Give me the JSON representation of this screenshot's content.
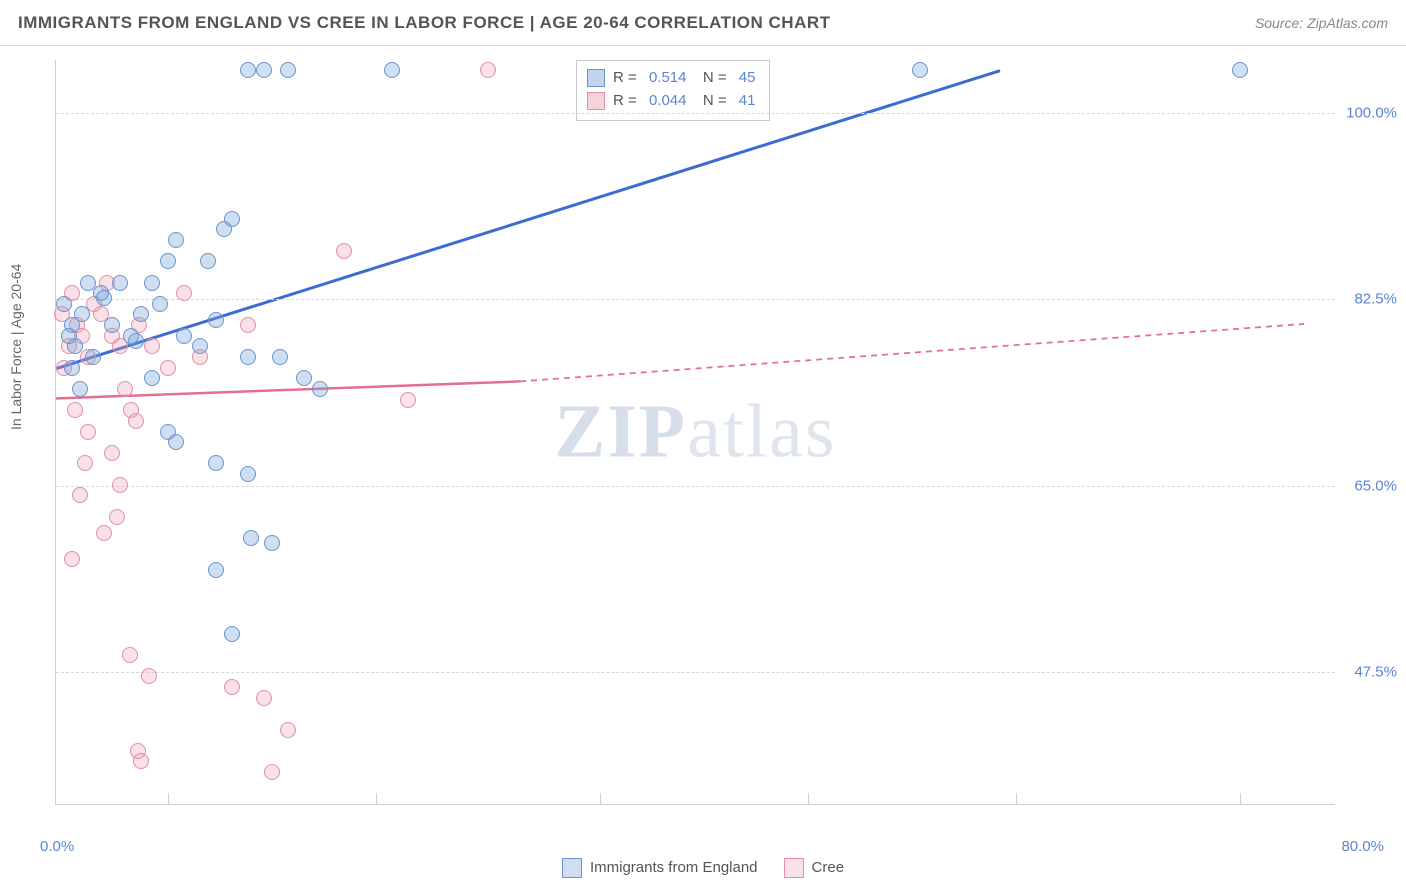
{
  "header": {
    "title": "IMMIGRANTS FROM ENGLAND VS CREE IN LABOR FORCE | AGE 20-64 CORRELATION CHART",
    "source": "Source: ZipAtlas.com"
  },
  "y_axis_label": "In Labor Force | Age 20-64",
  "axes": {
    "xmin": 0,
    "xmax": 80,
    "ymin": 35,
    "ymax": 105,
    "y_ticks": [
      {
        "v": 100.0,
        "label": "100.0%"
      },
      {
        "v": 82.5,
        "label": "82.5%"
      },
      {
        "v": 65.0,
        "label": "65.0%"
      },
      {
        "v": 47.5,
        "label": "47.5%"
      }
    ],
    "x_left_label": "0.0%",
    "x_right_label": "80.0%",
    "x_tick_positions": [
      7,
      20,
      34,
      47,
      60,
      74
    ]
  },
  "grid_color": "#d8d8d8",
  "stats": {
    "blue": {
      "R": "0.514",
      "N": "45"
    },
    "pink": {
      "R": "0.044",
      "N": "41"
    }
  },
  "series": {
    "blue": {
      "label": "Immigrants from England",
      "fill": "rgba(120,160,215,0.35)",
      "stroke": "#6a93d0",
      "line_color": "#3c6cd0",
      "line_width": 3,
      "regression": {
        "solid_from": [
          0,
          76
        ],
        "solid_to": [
          59,
          104
        ],
        "dash_to": null
      },
      "points": [
        [
          1,
          80
        ],
        [
          0.5,
          82
        ],
        [
          1.2,
          78
        ],
        [
          1.6,
          81
        ],
        [
          2,
          84
        ],
        [
          0.8,
          79
        ],
        [
          2.3,
          77
        ],
        [
          2.8,
          83
        ],
        [
          3,
          82.5
        ],
        [
          3.5,
          80
        ],
        [
          4,
          84
        ],
        [
          1,
          76
        ],
        [
          1.5,
          74
        ],
        [
          4.7,
          79
        ],
        [
          5,
          78.5
        ],
        [
          5.3,
          81
        ],
        [
          6,
          84
        ],
        [
          6.5,
          82
        ],
        [
          7,
          86
        ],
        [
          7.5,
          88
        ],
        [
          8,
          79
        ],
        [
          9,
          78
        ],
        [
          9.5,
          86
        ],
        [
          10,
          80.5
        ],
        [
          10.5,
          89
        ],
        [
          11,
          90
        ],
        [
          12,
          77
        ],
        [
          14,
          77
        ],
        [
          15.5,
          75
        ],
        [
          16.5,
          74
        ],
        [
          7,
          70
        ],
        [
          7.5,
          69
        ],
        [
          10,
          67
        ],
        [
          12,
          66
        ],
        [
          10,
          57
        ],
        [
          12.2,
          60
        ],
        [
          13.5,
          59.5
        ],
        [
          11,
          51
        ],
        [
          6,
          75
        ],
        [
          13,
          104
        ],
        [
          14.5,
          104
        ],
        [
          21,
          104
        ],
        [
          54,
          104
        ],
        [
          74,
          104
        ],
        [
          12,
          104
        ]
      ]
    },
    "pink": {
      "label": "Cree",
      "fill": "rgba(235,155,175,0.30)",
      "stroke": "#e28fa5",
      "line_color": "#e36f8f",
      "line_width": 2.5,
      "regression": {
        "solid_from": [
          0,
          73.2
        ],
        "solid_to": [
          29,
          74.8
        ],
        "dash_to": [
          78,
          80.2
        ]
      },
      "points": [
        [
          0.4,
          81
        ],
        [
          0.8,
          78
        ],
        [
          1.0,
          83
        ],
        [
          1.3,
          80
        ],
        [
          1.6,
          79
        ],
        [
          2.0,
          77
        ],
        [
          0.5,
          76
        ],
        [
          2.4,
          82
        ],
        [
          2.8,
          81
        ],
        [
          3.2,
          84
        ],
        [
          3.5,
          79
        ],
        [
          4,
          78
        ],
        [
          4.3,
          74
        ],
        [
          5.2,
          80
        ],
        [
          6,
          78
        ],
        [
          1.2,
          72
        ],
        [
          2,
          70
        ],
        [
          4.7,
          72
        ],
        [
          3.5,
          68
        ],
        [
          1.8,
          67
        ],
        [
          4,
          65
        ],
        [
          5,
          71
        ],
        [
          18,
          87
        ],
        [
          12,
          80
        ],
        [
          22,
          73
        ],
        [
          27,
          104
        ],
        [
          1.5,
          64
        ],
        [
          3.8,
          62
        ],
        [
          3,
          60.5
        ],
        [
          1,
          58
        ],
        [
          4.6,
          49
        ],
        [
          5.8,
          47
        ],
        [
          11,
          46
        ],
        [
          13,
          45
        ],
        [
          14.5,
          42
        ],
        [
          5.1,
          40
        ],
        [
          5.3,
          39
        ],
        [
          13.5,
          38
        ],
        [
          8,
          83
        ],
        [
          7,
          76
        ],
        [
          9,
          77
        ]
      ]
    }
  },
  "bottom_legend": [
    {
      "color_key": "blue",
      "label": "Immigrants from England"
    },
    {
      "color_key": "pink",
      "label": "Cree"
    }
  ],
  "watermark": {
    "bold": "ZIP",
    "rest": "atlas"
  }
}
